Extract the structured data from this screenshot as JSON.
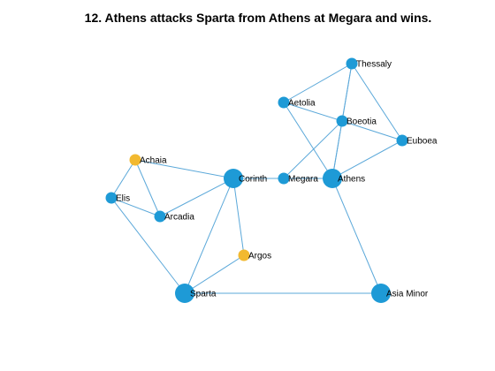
{
  "title": "12. Athens attacks Sparta from Athens at Megara and wins.",
  "colors": {
    "node_default": "#1e9ad6",
    "node_highlight": "#f2b930",
    "edge": "#5ba8d9"
  },
  "graph": {
    "nodes": [
      {
        "id": "thessaly",
        "label": "Thessaly",
        "size": "small",
        "color": "node_default"
      },
      {
        "id": "aetolia",
        "label": "Aetolia",
        "size": "small",
        "color": "node_default"
      },
      {
        "id": "boeotia",
        "label": "Boeotia",
        "size": "small",
        "color": "node_default"
      },
      {
        "id": "euboea",
        "label": "Euboea",
        "size": "small",
        "color": "node_default"
      },
      {
        "id": "achaia",
        "label": "Achaia",
        "size": "small",
        "color": "node_highlight"
      },
      {
        "id": "corinth",
        "label": "Corinth",
        "size": "large",
        "color": "node_default"
      },
      {
        "id": "megara",
        "label": "Megara",
        "size": "small",
        "color": "node_default"
      },
      {
        "id": "athens",
        "label": "Athens",
        "size": "large",
        "color": "node_default"
      },
      {
        "id": "elis",
        "label": "Elis",
        "size": "small",
        "color": "node_default"
      },
      {
        "id": "arcadia",
        "label": "Arcadia",
        "size": "small",
        "color": "node_default"
      },
      {
        "id": "argos",
        "label": "Argos",
        "size": "small",
        "color": "node_highlight"
      },
      {
        "id": "sparta",
        "label": "Sparta",
        "size": "large",
        "color": "node_default"
      },
      {
        "id": "asia_minor",
        "label": "Asia Minor",
        "size": "large",
        "color": "node_default"
      }
    ],
    "edges": [
      [
        "thessaly",
        "aetolia"
      ],
      [
        "thessaly",
        "boeotia"
      ],
      [
        "thessaly",
        "euboea"
      ],
      [
        "thessaly",
        "athens"
      ],
      [
        "aetolia",
        "boeotia"
      ],
      [
        "aetolia",
        "athens"
      ],
      [
        "boeotia",
        "euboea"
      ],
      [
        "boeotia",
        "megara"
      ],
      [
        "boeotia",
        "athens"
      ],
      [
        "euboea",
        "athens"
      ],
      [
        "athens",
        "megara"
      ],
      [
        "athens",
        "asia_minor"
      ],
      [
        "corinth",
        "megara"
      ],
      [
        "corinth",
        "achaia"
      ],
      [
        "corinth",
        "arcadia"
      ],
      [
        "corinth",
        "argos"
      ],
      [
        "corinth",
        "sparta"
      ],
      [
        "achaia",
        "elis"
      ],
      [
        "achaia",
        "arcadia"
      ],
      [
        "elis",
        "arcadia"
      ],
      [
        "elis",
        "sparta"
      ],
      [
        "argos",
        "sparta"
      ],
      [
        "sparta",
        "asia_minor"
      ]
    ]
  }
}
